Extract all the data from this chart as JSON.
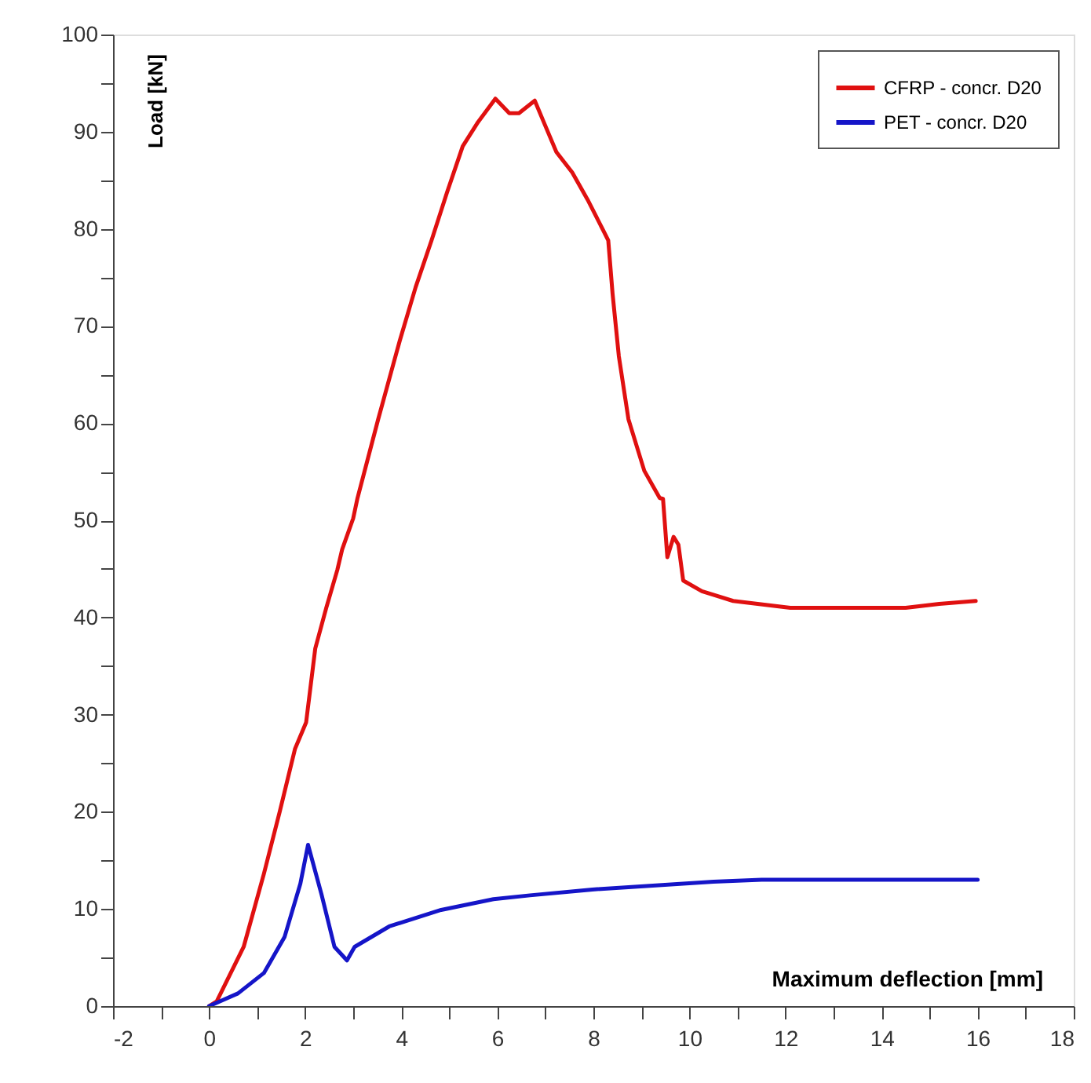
{
  "chart_data": {
    "type": "line",
    "xlabel": "Maximum deflection  [mm]",
    "ylabel": "Load [kN]",
    "xlim": [
      -2,
      18
    ],
    "ylim": [
      0,
      100
    ],
    "xticks": [
      -2,
      {
        "value": -1,
        "label": null
      },
      0,
      {
        "value": 1,
        "label": null
      },
      2,
      {
        "value": 3,
        "label": null
      },
      4,
      {
        "value": 5,
        "label": null
      },
      6,
      {
        "value": 7,
        "label": null
      },
      8,
      {
        "value": 9,
        "label": null
      },
      10,
      {
        "value": 11,
        "label": null
      },
      12,
      {
        "value": 13,
        "label": null
      },
      14,
      {
        "value": 15,
        "label": null
      },
      16,
      {
        "value": 17,
        "label": null
      },
      18
    ],
    "yticks": [
      0,
      {
        "value": 5,
        "label": null
      },
      10,
      {
        "value": 15,
        "label": null
      },
      20,
      {
        "value": 25,
        "label": null
      },
      30,
      {
        "value": 35,
        "label": null
      },
      40,
      {
        "value": 45,
        "label": null
      },
      50,
      {
        "value": 55,
        "label": null
      },
      60,
      {
        "value": 65,
        "label": null
      },
      70,
      {
        "value": 75,
        "label": null
      },
      80,
      {
        "value": 85,
        "label": null
      },
      90,
      {
        "value": 95,
        "label": null
      },
      100
    ],
    "grid": false,
    "legend": "top right",
    "line_style": "solid",
    "series": [
      {
        "name": "CFRP - concr. D20",
        "color": "#e01010",
        "x": [
          0,
          0.16,
          0.72,
          1.14,
          1.47,
          1.79,
          2.02,
          2.21,
          2.44,
          2.67,
          2.77,
          3.0,
          3.09,
          3.52,
          3.97,
          4.3,
          4.63,
          4.95,
          5.28,
          5.6,
          5.96,
          6.25,
          6.45,
          6.78,
          7.0,
          7.23,
          7.56,
          7.88,
          8.21,
          8.31,
          8.4,
          8.53,
          8.73,
          9.06,
          9.38,
          9.45,
          9.54,
          9.67,
          9.77,
          9.87,
          10.26,
          10.91,
          12.1,
          13.4,
          14.5,
          15.2,
          15.96
        ],
        "values": [
          0,
          0.5,
          6.1,
          13.6,
          20,
          26.5,
          29.2,
          36.8,
          41,
          44.9,
          47,
          50.2,
          52.3,
          60.4,
          68.5,
          74,
          78.8,
          83.7,
          88.5,
          91,
          93.4,
          91.9,
          91.9,
          93.2,
          90.6,
          87.9,
          85.8,
          83,
          79.8,
          78.8,
          73.3,
          66.9,
          60.4,
          55.1,
          52.3,
          52.2,
          46.2,
          48.3,
          47.5,
          43.8,
          42.7,
          41.7,
          41,
          41,
          41,
          41.4,
          41.7
        ]
      },
      {
        "name": "PET - concr. D20",
        "color": "#1515c8",
        "x": [
          0,
          0.6,
          1.14,
          1.57,
          1.9,
          2.06,
          2.34,
          2.61,
          2.87,
          3.03,
          3.75,
          4.83,
          5.92,
          6.68,
          7.98,
          10.5,
          11.5,
          16.0
        ],
        "values": [
          0,
          1.3,
          3.4,
          7.1,
          12.6,
          16.6,
          11.5,
          6.1,
          4.7,
          6.1,
          8.2,
          9.9,
          11,
          11.4,
          12,
          12.8,
          13,
          13
        ]
      }
    ]
  }
}
